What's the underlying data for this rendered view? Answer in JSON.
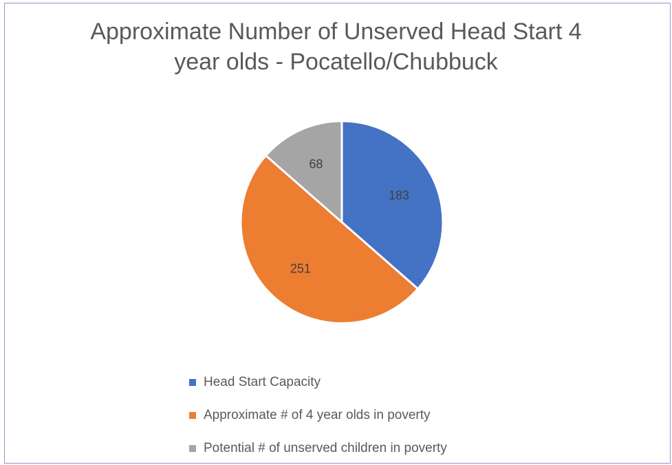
{
  "chart_data": {
    "type": "pie",
    "title_lines": [
      "Approximate Number of Unserved Head Start 4",
      "year olds - Pocatello/Chubbuck"
    ],
    "categories": [
      "Head Start Capacity",
      "Approximate # of 4 year olds in poverty",
      "Potential # of unserved children in poverty"
    ],
    "values": [
      183,
      251,
      68
    ],
    "colors": [
      "#4472c4",
      "#ed7d31",
      "#a5a5a5"
    ],
    "data_labels": [
      "183",
      "251",
      "68"
    ],
    "legend_position": "bottom"
  }
}
